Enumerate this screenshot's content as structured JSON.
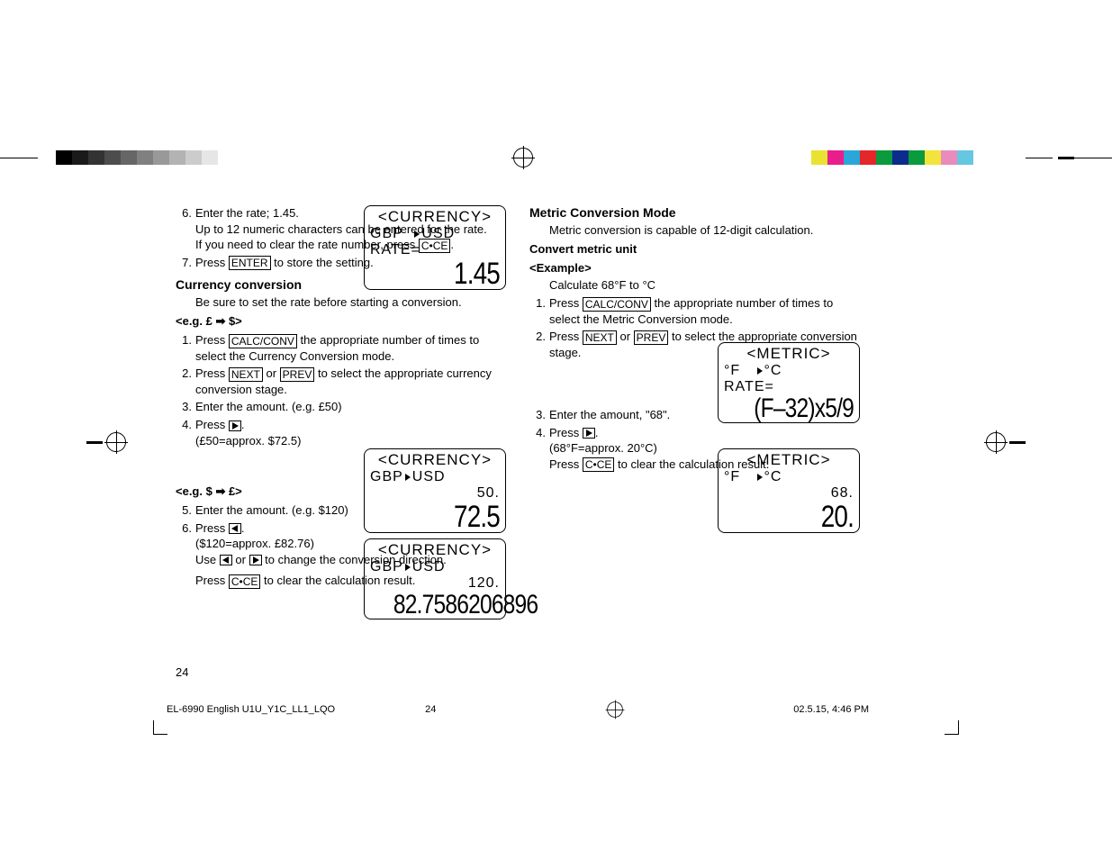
{
  "color_bars": {
    "grays": [
      "#000000",
      "#1a1a1a",
      "#333333",
      "#4d4d4d",
      "#666666",
      "#808080",
      "#999999",
      "#b3b3b3",
      "#cccccc",
      "#e6e6e6",
      "#ffffff"
    ],
    "colors": [
      "#e9e233",
      "#e91e8c",
      "#2aa6d8",
      "#e4272b",
      "#0b9a3d",
      "#0b2c8a",
      "#0b9a3d",
      "#f2e43a",
      "#ea8bbd",
      "#66c7e0",
      "#ffffff"
    ]
  },
  "lcd1": {
    "hdr": "<CURRENCY>",
    "l1a": "GBP",
    "l1b": "USD",
    "l2": "RATE=",
    "big": "1.45"
  },
  "lcd2": {
    "hdr": "<CURRENCY>",
    "l1a": "GBP",
    "l1b": "USD",
    "mid": "50.",
    "big": "72.5"
  },
  "lcd3": {
    "hdr": "<CURRENCY>",
    "l1a": "GBP",
    "l1b": "USD",
    "mid": "120.",
    "big": "82.7586206896"
  },
  "lcd4": {
    "hdr": "<METRIC>",
    "l1a": "°F",
    "l1b": "°C",
    "l2": "RATE=",
    "big": "(F–32)x5/9"
  },
  "lcd5": {
    "hdr": "<METRIC>",
    "l1a": "°F",
    "l1b": "°C",
    "mid": "68.",
    "big": "20."
  },
  "left": {
    "step6": "Enter the rate; 1.45.",
    "step6b": "Up to 12 numeric characters can be entered for the rate.",
    "step6c": "If you need to clear the rate number, press ",
    "step7a": "Press ",
    "step7b": " to store the setting.",
    "h_currconv": "Currency conversion",
    "currconv_intro": "Be sure to set the rate before starting a conversion.",
    "eg1": "<e.g. £ ➡ $>",
    "s1a": "Press ",
    "s1b": " the appropriate number of times to select the Currency Conversion mode.",
    "s2a": "Press ",
    "s2b": " or ",
    "s2c": " to select the appropriate currency conversion stage.",
    "s3": "Enter the amount. (e.g. £50)",
    "s4a": "Press ",
    "s4b": ".",
    "s4c": "(£50=approx. $72.5)",
    "eg2": "<e.g. $ ➡ £>",
    "s5": "Enter the amount. (e.g. $120)",
    "s6a": "Press ",
    "s6b": ".",
    "s6c": "($120=approx. £82.76)",
    "s6d": "Use ",
    "s6e": " or ",
    "s6f": " to change the conversion direction.",
    "s6g": "Press ",
    "s6h": " to clear the calculation result.",
    "key_cce": "C•CE",
    "key_enter": "ENTER",
    "key_calc": "CALC/CONV",
    "key_next": "NEXT",
    "key_prev": "PREV",
    "pagenum": "24"
  },
  "right": {
    "h_metric": "Metric Conversion Mode",
    "intro": "Metric conversion is capable of 12-digit calculation.",
    "h_convert": "Convert metric unit",
    "ex": "<Example>",
    "calc": "Calculate 68°F to °C",
    "s1a": "Press ",
    "s1b": " the appropriate number of times to select the Metric Conversion mode.",
    "s2a": "Press ",
    "s2b": " or ",
    "s2c": " to select the appropriate conversion stage.",
    "s3": "Enter the amount, \"68\".",
    "s4a": "Press ",
    "s4b": ".",
    "s4c": "(68°F=approx. 20°C)",
    "s4d": "Press ",
    "s4e": " to clear the calculation result.",
    "key_calc": "CALC/CONV",
    "key_next": "NEXT",
    "key_prev": "PREV",
    "key_cce": "C•CE"
  },
  "footer": {
    "doc": "EL-6990 English U1U_Y1C_LL1_LQO",
    "p": "24",
    "ts": "02.5.15, 4:46 PM"
  }
}
